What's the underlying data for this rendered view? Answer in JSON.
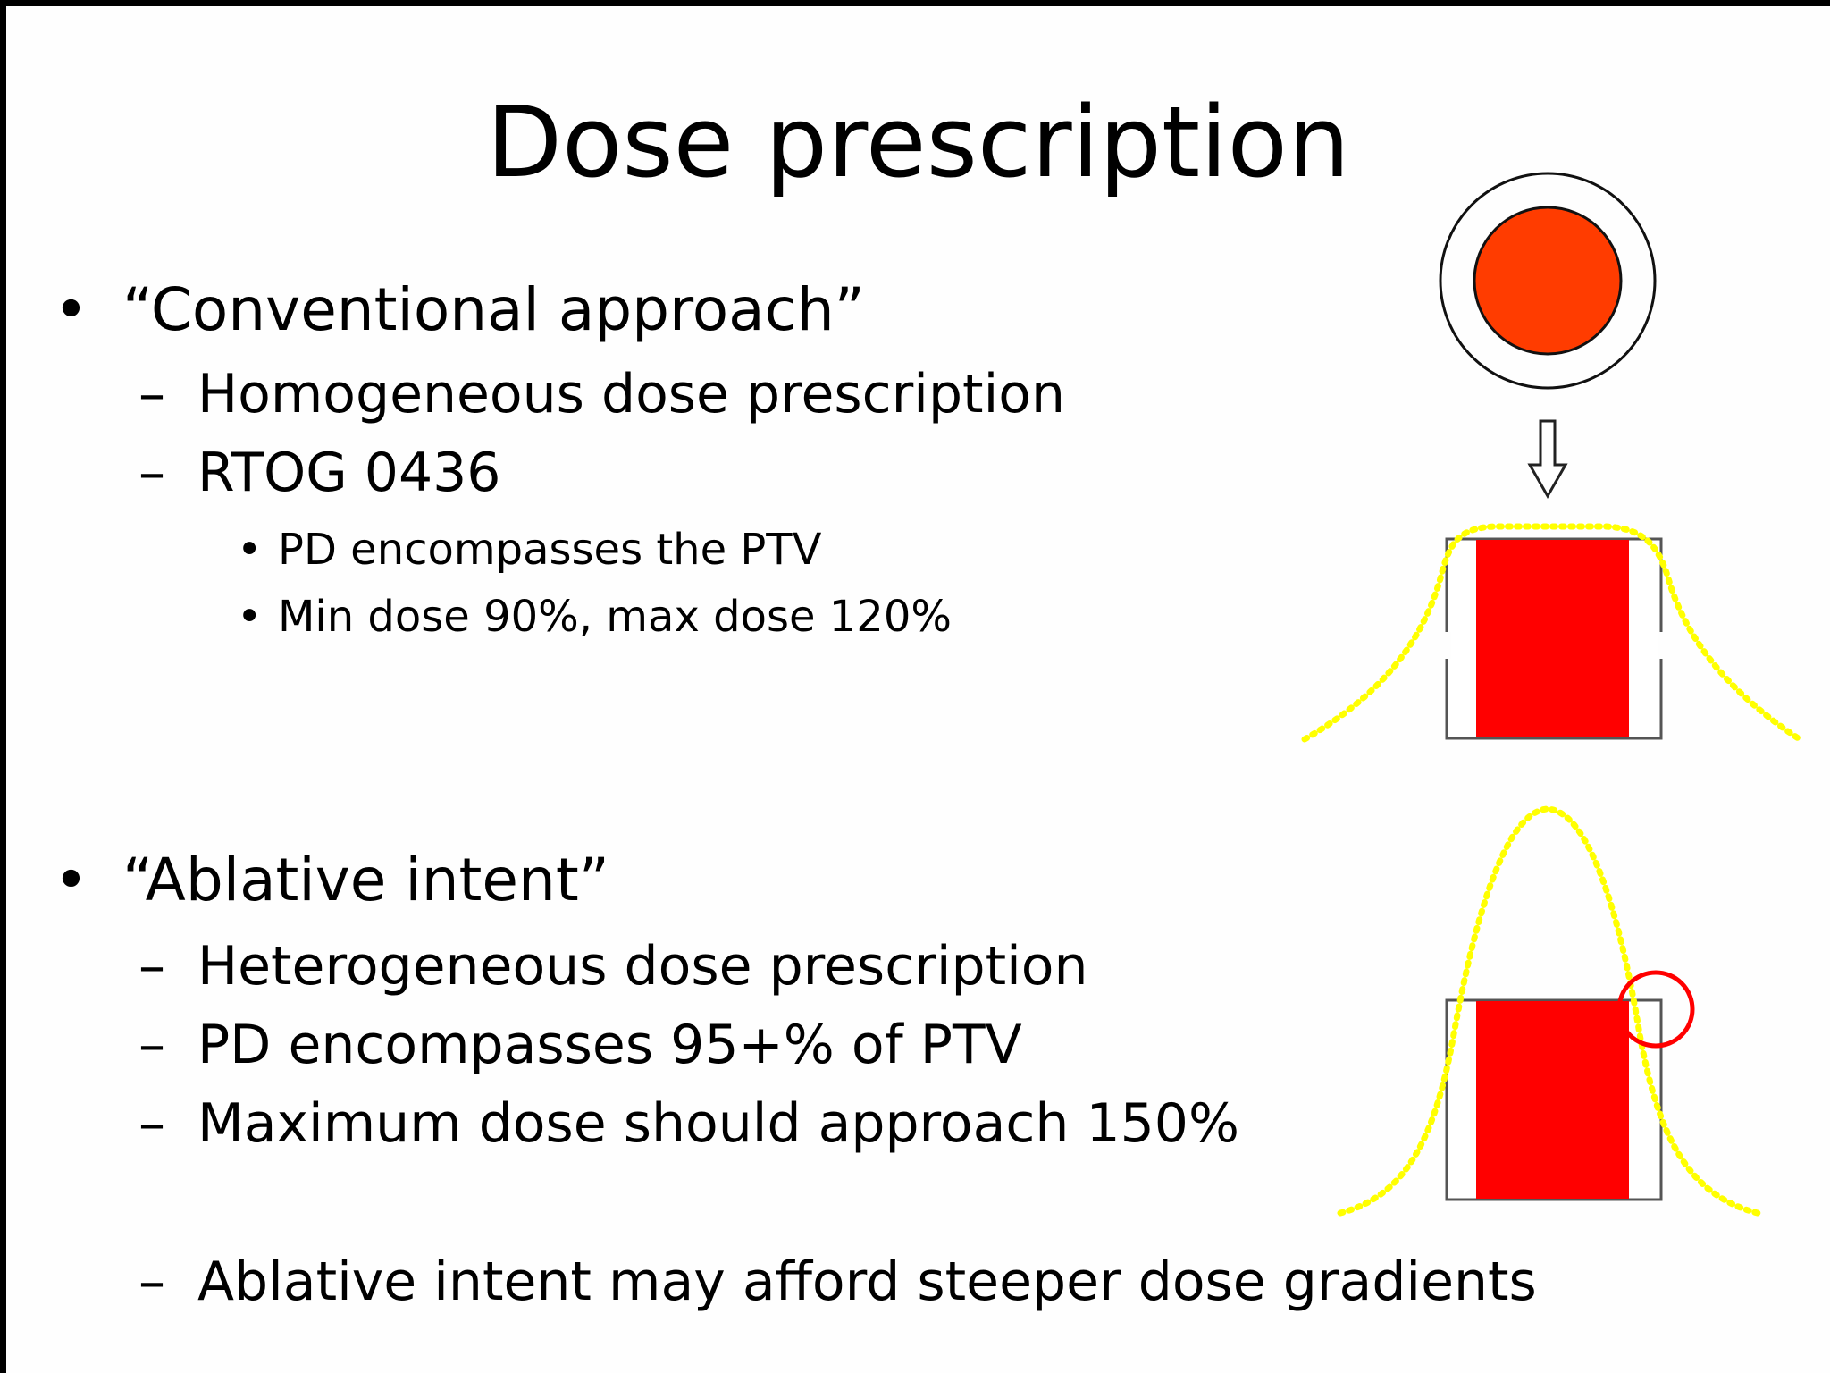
{
  "slide": {
    "title": "Dose prescription",
    "sections": [
      {
        "heading": "“Conventional approach”",
        "items": [
          {
            "text": "Homogeneous dose prescription"
          },
          {
            "text": "RTOG 0436",
            "subitems": [
              "PD encompasses the PTV",
              "Min dose 90%, max dose 120%"
            ]
          }
        ]
      },
      {
        "heading": "“Ablative intent”",
        "items": [
          {
            "text": "Heterogeneous dose prescription"
          },
          {
            "text": "PD encompasses 95+% of PTV"
          },
          {
            "text": "Maximum dose should approach 150%"
          },
          {
            "text": "Ablative intent may afford steeper dose gradients"
          }
        ]
      }
    ],
    "markers": {
      "level1": "•",
      "level2": "–",
      "level3": "•"
    }
  },
  "colors": {
    "tumor": "#ff3c00",
    "target_fill": "#ff0000",
    "dose_curve": "#ffff00",
    "highlight_circle": "#ff0000",
    "outline": "#333333"
  },
  "icons": [
    "tumor-target-icon",
    "down-arrow-icon",
    "homogeneous-dose-diagram",
    "heterogeneous-dose-diagram",
    "highlight-circle"
  ]
}
